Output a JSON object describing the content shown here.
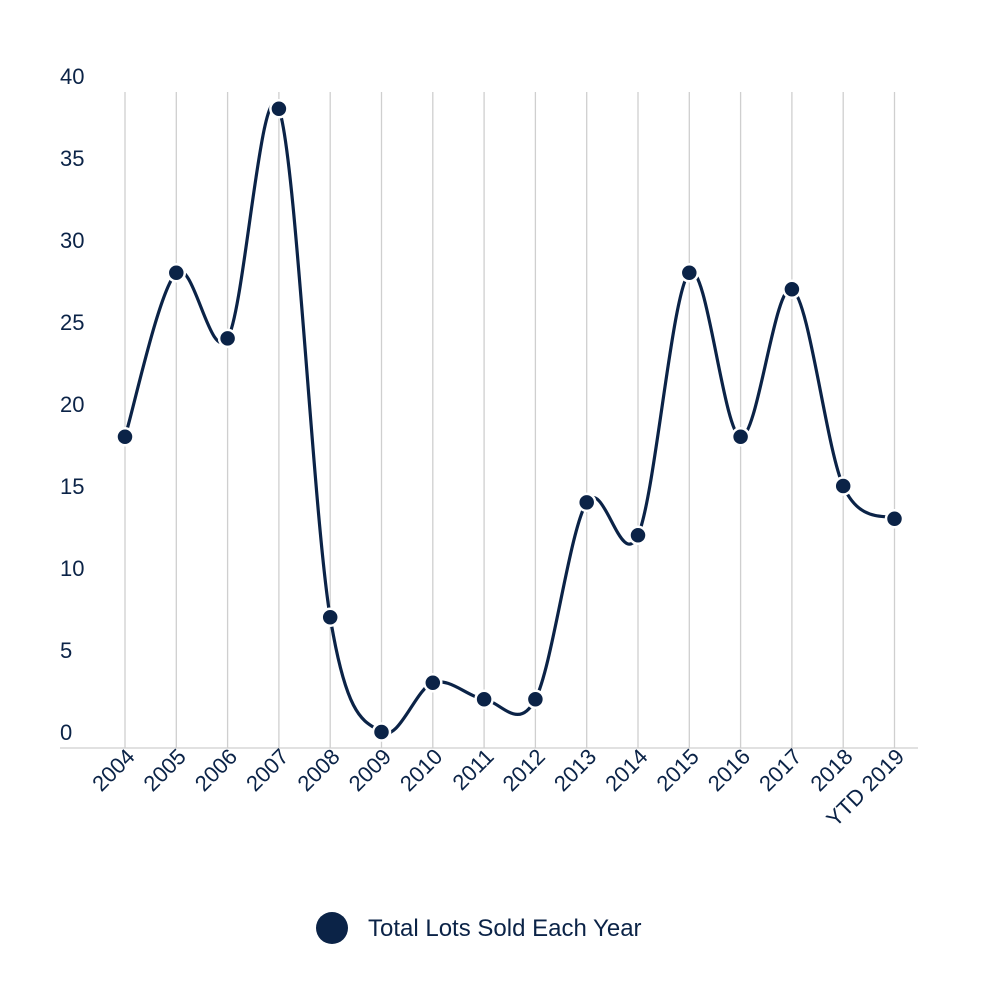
{
  "chart_data": {
    "type": "line",
    "title": "",
    "xlabel": "",
    "ylabel": "",
    "categories": [
      "2004",
      "2005",
      "2006",
      "2007",
      "2008",
      "2009",
      "2010",
      "2011",
      "2012",
      "2013",
      "2014",
      "2015",
      "2016",
      "2017",
      "2018",
      "YTD 2019"
    ],
    "series": [
      {
        "name": "Total Lots Sold Each Year",
        "values": [
          18,
          28,
          24,
          38,
          7,
          0,
          3,
          2,
          2,
          14,
          12,
          28,
          18,
          27,
          15,
          13
        ],
        "color": "#0b2347",
        "smooth": true
      }
    ],
    "ylim": [
      0,
      40
    ],
    "yticks": [
      0,
      5,
      10,
      15,
      20,
      25,
      30,
      35,
      40
    ],
    "grid": "vertical",
    "legend": "bottom-center"
  },
  "colors": {
    "line": "#0b2347",
    "marker_fill": "#0b2347",
    "marker_stroke": "#ffffff",
    "grid": "#cfcfcf",
    "axis": "#cfcfcf",
    "text": "#0b2347"
  }
}
